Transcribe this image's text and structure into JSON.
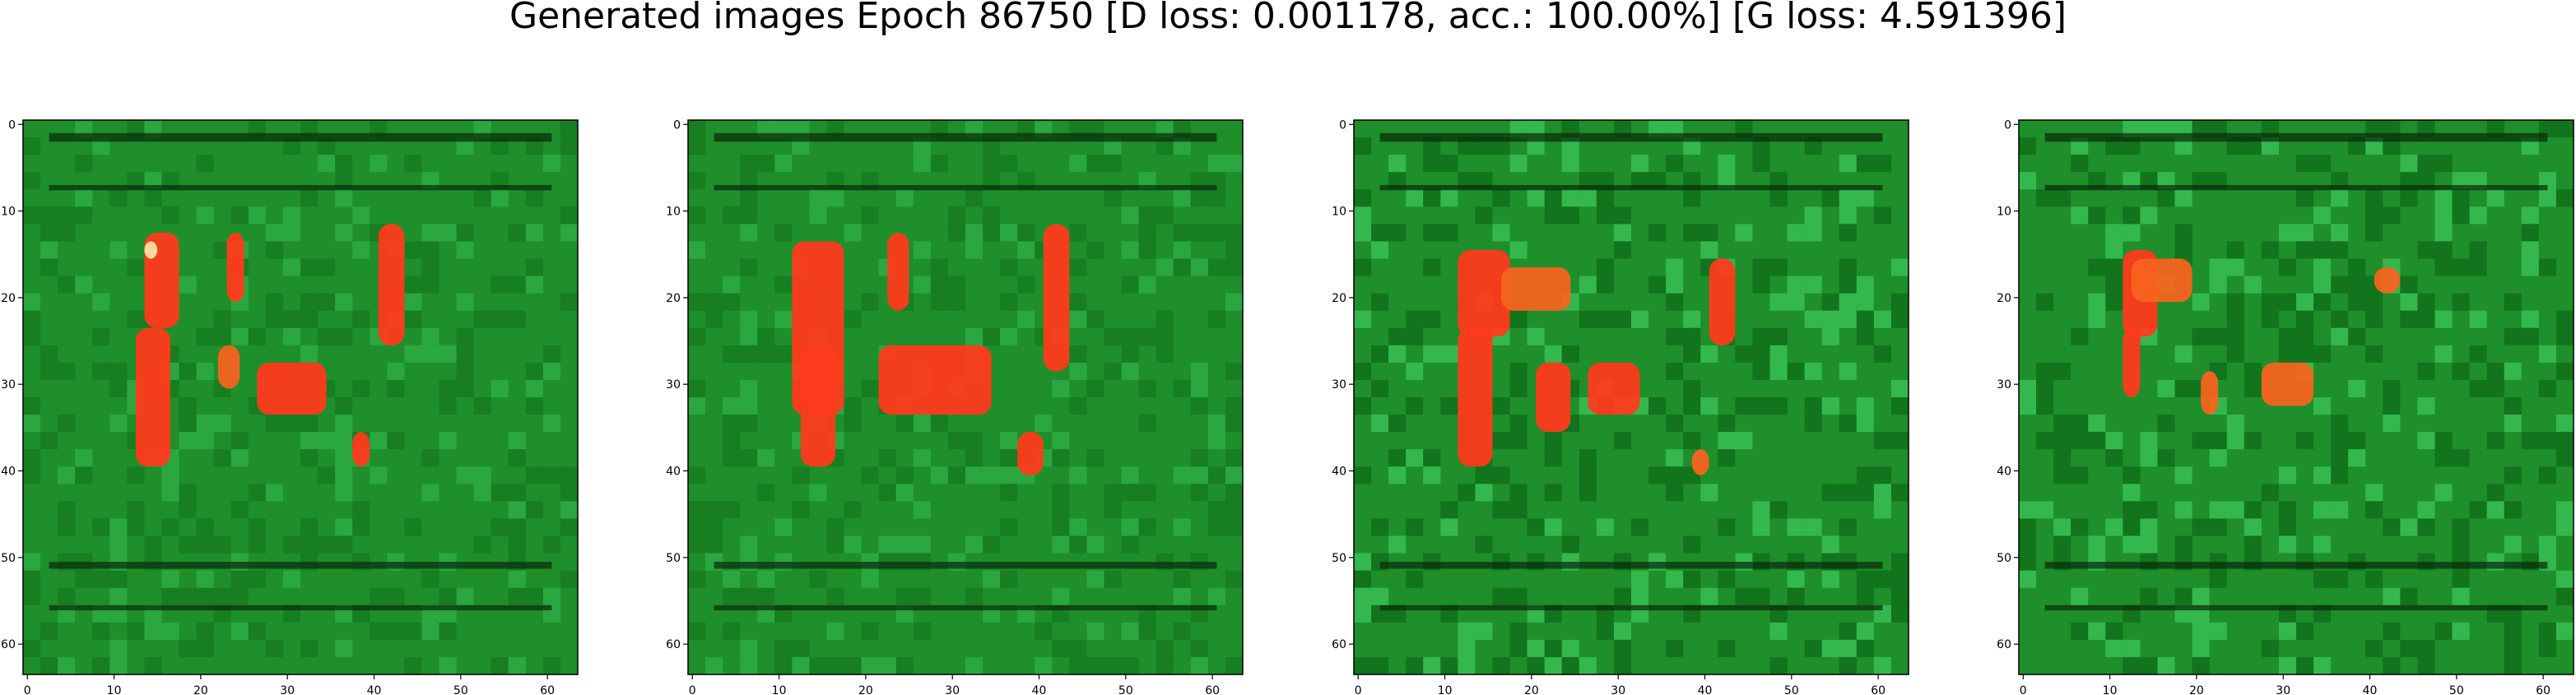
{
  "figure": {
    "title": "Generated images Epoch 86750 [D loss: 0.001178, acc.: 100.00%] [G loss: 4.591396]",
    "colors": {
      "background_green": "#1e8f2a",
      "dark_green": "#0f6b18",
      "light_green": "#3cc65a",
      "blob_red": "#ff3a1e",
      "blob_orange": "#f5641f",
      "blob_light": "#ffe0a0",
      "stripe_dark": "#0a2a0c"
    },
    "axes": {
      "xticks": [
        "0",
        "10",
        "20",
        "30",
        "40",
        "50",
        "60"
      ],
      "yticks": [
        "0",
        "10",
        "20",
        "30",
        "40",
        "50",
        "60"
      ]
    },
    "panels": [
      {
        "name": "generated-image-1"
      },
      {
        "name": "generated-image-2"
      },
      {
        "name": "generated-image-3"
      },
      {
        "name": "generated-image-4"
      }
    ]
  }
}
